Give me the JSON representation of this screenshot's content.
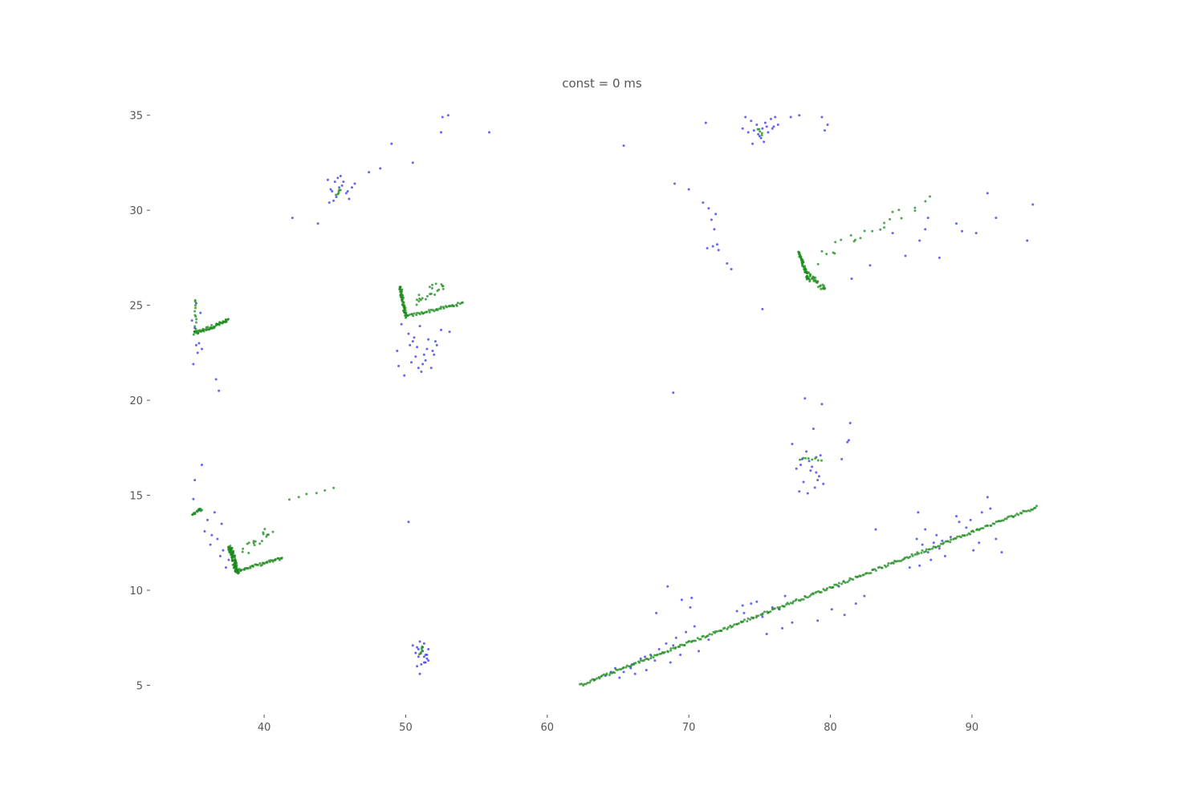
{
  "chart_data": {
    "type": "scatter",
    "title": "const = 0 ms",
    "xlabel": "",
    "ylabel": "",
    "xlim": [
      32,
      98
    ],
    "ylim": [
      3.5,
      36
    ],
    "xticks": [
      40,
      50,
      60,
      70,
      80,
      90
    ],
    "yticks": [
      5,
      10,
      15,
      20,
      25,
      30,
      35
    ],
    "grid": false,
    "legend": "none",
    "colors": {
      "blue": "#3333ee",
      "green": "#1a8a1a"
    },
    "series": [
      {
        "color_key": "blue",
        "x": [
          34.9,
          35.1,
          35.2,
          35.4,
          35.0,
          35.3,
          36.6,
          36.8,
          35.2,
          35.6,
          35.5,
          45.0,
          45.3,
          44.8,
          45.5,
          45.8,
          44.5,
          46.4,
          45.1,
          44.7,
          45.9,
          46.2,
          45.6,
          44.9,
          45.4,
          44.6,
          47.4,
          48.2,
          46.0,
          45.2,
          43.8,
          42.0,
          49.0,
          50.5,
          52.5,
          52.6,
          53.0,
          55.9,
          49.7,
          50.2,
          50.5,
          50.8,
          51.0,
          51.3,
          51.6,
          51.9,
          52.2,
          52.5,
          50.4,
          50.9,
          51.4,
          51.8,
          49.5,
          49.9,
          50.7,
          51.1,
          51.5,
          52.1,
          53.1,
          52.0,
          50.3,
          50.6,
          49.4,
          51.2,
          50.2,
          50.5,
          50.8,
          51.0,
          51.2,
          51.4,
          51.6,
          50.9,
          51.3,
          51.5,
          50.7,
          51.1,
          51.3,
          51.6,
          51.0,
          50.8,
          51.4,
          51.2,
          50.9,
          51.5,
          51.3,
          36.0,
          35.8,
          35.4,
          36.3,
          36.7,
          36.2,
          37.1,
          36.9,
          37.5,
          37.3,
          35.0,
          35.1,
          36.5,
          35.6,
          37.0,
          74.0,
          74.4,
          74.8,
          75.2,
          75.6,
          76.0,
          74.6,
          75.0,
          75.4,
          75.8,
          74.2,
          75.1,
          75.9,
          76.3,
          74.9,
          75.5,
          73.8,
          75.3,
          76.1,
          74.5,
          77.2,
          77.8,
          79.4,
          79.8,
          79.6,
          65.4,
          71.2,
          69.0,
          70.0,
          71.0,
          71.4,
          71.6,
          71.8,
          72.0,
          71.7,
          72.1,
          72.7,
          73.0,
          71.3,
          71.9,
          75.2,
          68.9,
          77.3,
          78.3,
          79.0,
          77.9,
          78.6,
          79.2,
          78.1,
          77.8,
          78.9,
          79.5,
          78.4,
          78.0,
          79.3,
          78.7,
          79.0,
          78.5,
          77.6,
          79.1,
          80.8,
          81.4,
          81.3,
          78.8,
          78.2,
          79.4,
          81.5,
          82.8,
          84.4,
          85.3,
          86.3,
          86.7,
          86.9,
          87.7,
          88.9,
          89.3,
          90.3,
          91.1,
          91.7,
          93.9,
          94.3,
          63.3,
          64.1,
          64.8,
          65.4,
          66.0,
          66.6,
          67.3,
          67.9,
          68.4,
          69.1,
          69.8,
          70.4,
          66.2,
          67.0,
          68.7,
          69.4,
          70.7,
          65.1,
          66.9,
          67.6,
          68.9,
          69.5,
          64.5,
          65.9,
          67.7,
          70.1,
          70.2,
          71.4,
          68.5,
          73.4,
          74.4,
          75.2,
          76.4,
          77.3,
          73.8,
          74.8,
          75.9,
          76.8,
          73.9,
          75.5,
          76.6,
          80.1,
          81.0,
          81.8,
          82.4,
          79.1,
          80.6,
          86.1,
          86.5,
          86.9,
          87.3,
          87.7,
          88.1,
          86.7,
          87.1,
          87.5,
          86.3,
          87.9,
          88.5,
          89.1,
          89.6,
          90.1,
          90.7,
          91.3,
          91.7,
          89.9,
          90.5,
          91.1,
          88.9,
          86.2,
          85.6,
          92.1,
          83.2,
          81.2
        ],
        "y": [
          24.2,
          23.8,
          22.9,
          23.0,
          21.9,
          22.5,
          21.1,
          20.5,
          25.1,
          22.7,
          24.6,
          31.5,
          31.2,
          31.0,
          31.3,
          30.9,
          31.6,
          31.4,
          30.7,
          31.1,
          31.0,
          31.2,
          31.5,
          30.5,
          31.8,
          30.4,
          32.0,
          32.2,
          30.6,
          31.7,
          29.3,
          29.6,
          33.5,
          32.5,
          34.1,
          34.9,
          35.0,
          34.1,
          24.0,
          23.5,
          23.1,
          22.8,
          23.9,
          22.4,
          23.2,
          22.6,
          22.9,
          23.7,
          22.0,
          21.7,
          22.1,
          21.7,
          21.8,
          21.3,
          22.3,
          21.5,
          22.7,
          23.1,
          23.6,
          22.4,
          22.9,
          23.3,
          22.6,
          21.9,
          13.6,
          7.1,
          7.0,
          7.3,
          6.8,
          6.6,
          6.9,
          6.5,
          6.2,
          6.4,
          6.7,
          6.1,
          7.2,
          6.3,
          5.6,
          6.0,
          6.2,
          7.0,
          6.9,
          6.6,
          6.5,
          13.7,
          13.1,
          14.2,
          12.9,
          12.7,
          12.4,
          12.1,
          11.8,
          11.6,
          11.2,
          14.8,
          15.8,
          14.1,
          16.6,
          13.5,
          34.9,
          34.7,
          34.5,
          34.3,
          34.1,
          34.4,
          34.2,
          33.9,
          34.6,
          34.8,
          34.1,
          33.8,
          34.3,
          34.5,
          34.0,
          34.4,
          34.3,
          33.6,
          34.9,
          33.5,
          34.9,
          35.0,
          34.9,
          34.5,
          34.2,
          33.4,
          34.6,
          31.4,
          31.1,
          30.4,
          30.1,
          29.5,
          29.0,
          28.2,
          28.1,
          27.9,
          27.2,
          26.9,
          28.0,
          29.8,
          24.8,
          20.4,
          17.7,
          17.3,
          17.0,
          16.6,
          16.3,
          16.0,
          15.7,
          15.2,
          15.4,
          15.6,
          15.1,
          16.9,
          17.1,
          16.5,
          16.2,
          16.8,
          16.4,
          15.8,
          16.9,
          18.8,
          17.9,
          18.5,
          20.1,
          19.8,
          26.4,
          27.1,
          28.8,
          27.6,
          28.4,
          29.0,
          29.6,
          27.5,
          29.3,
          28.9,
          28.8,
          30.9,
          29.6,
          28.4,
          30.3,
          5.3,
          5.5,
          5.9,
          5.7,
          6.1,
          6.4,
          6.6,
          6.9,
          7.2,
          7.5,
          7.8,
          8.1,
          5.6,
          5.8,
          6.2,
          6.6,
          6.8,
          5.4,
          6.5,
          6.3,
          7.1,
          9.5,
          5.7,
          5.9,
          8.8,
          9.1,
          9.6,
          7.4,
          10.2,
          8.9,
          9.3,
          8.6,
          9.0,
          8.3,
          9.2,
          9.4,
          9.1,
          9.7,
          8.8,
          7.7,
          8.0,
          9.0,
          8.7,
          9.3,
          9.7,
          8.4,
          10.2,
          12.7,
          12.4,
          12.0,
          12.5,
          12.2,
          11.8,
          13.2,
          11.6,
          12.9,
          11.3,
          12.6,
          12.8,
          13.6,
          13.3,
          12.1,
          14.1,
          14.3,
          12.7,
          13.7,
          12.5,
          14.9,
          13.9,
          14.1,
          11.2,
          12.0,
          13.2,
          17.8
        ]
      },
      {
        "color_key": "green",
        "segments": [
          {
            "x0": 35.0,
            "y0": 23.5,
            "x1": 37.5,
            "y1": 24.2,
            "n": 55,
            "jitter": [
              0.08,
              0.1
            ]
          },
          {
            "x0": 35.2,
            "y0": 23.6,
            "x1": 35.1,
            "y1": 25.3,
            "n": 12,
            "jitter": [
              0.08,
              0.05
            ]
          },
          {
            "x0": 49.6,
            "y0": 26.0,
            "x1": 50.0,
            "y1": 24.4,
            "n": 50,
            "jitter": [
              0.1,
              0.05
            ]
          },
          {
            "x0": 50.0,
            "y0": 24.4,
            "x1": 54.0,
            "y1": 25.1,
            "n": 45,
            "jitter": [
              0.05,
              0.07
            ]
          },
          {
            "x0": 50.6,
            "y0": 25.2,
            "x1": 52.8,
            "y1": 26.2,
            "n": 22,
            "jitter": [
              0.2,
              0.3
            ]
          },
          {
            "x0": 37.6,
            "y0": 12.3,
            "x1": 38.1,
            "y1": 10.9,
            "n": 90,
            "jitter": [
              0.15,
              0.08
            ]
          },
          {
            "x0": 38.0,
            "y0": 11.0,
            "x1": 41.3,
            "y1": 11.7,
            "n": 45,
            "jitter": [
              0.05,
              0.07
            ]
          },
          {
            "x0": 38.5,
            "y0": 12.1,
            "x1": 40.5,
            "y1": 13.2,
            "n": 18,
            "jitter": [
              0.2,
              0.3
            ]
          },
          {
            "x0": 34.9,
            "y0": 14.0,
            "x1": 35.6,
            "y1": 14.3,
            "n": 15,
            "jitter": [
              0.05,
              0.08
            ]
          },
          {
            "x0": 77.8,
            "y0": 27.8,
            "x1": 78.5,
            "y1": 26.3,
            "n": 45,
            "jitter": [
              0.1,
              0.08
            ]
          },
          {
            "x0": 78.3,
            "y0": 26.8,
            "x1": 79.6,
            "y1": 25.8,
            "n": 30,
            "jitter": [
              0.15,
              0.12
            ]
          },
          {
            "x0": 79.0,
            "y0": 27.5,
            "x1": 86.7,
            "y1": 30.4,
            "n": 24,
            "jitter": [
              0.35,
              0.35
            ]
          },
          {
            "x0": 62.3,
            "y0": 5.0,
            "x1": 94.6,
            "y1": 14.4,
            "n": 300,
            "jitter": [
              0.05,
              0.07
            ]
          },
          {
            "x0": 45.1,
            "y0": 30.8,
            "x1": 45.4,
            "y1": 31.1,
            "n": 6,
            "jitter": [
              0.05,
              0.05
            ]
          },
          {
            "x0": 74.9,
            "y0": 34.3,
            "x1": 75.2,
            "y1": 34.0,
            "n": 5,
            "jitter": [
              0.05,
              0.05
            ]
          },
          {
            "x0": 77.8,
            "y0": 16.9,
            "x1": 79.4,
            "y1": 16.9,
            "n": 8,
            "jitter": [
              0.05,
              0.08
            ]
          },
          {
            "x0": 51.0,
            "y0": 6.6,
            "x1": 51.2,
            "y1": 7.0,
            "n": 6,
            "jitter": [
              0.05,
              0.05
            ]
          },
          {
            "x0": 41.8,
            "y0": 14.8,
            "x1": 44.9,
            "y1": 15.4,
            "n": 6,
            "jitter": [
              0.05,
              0.05
            ]
          }
        ]
      }
    ]
  }
}
